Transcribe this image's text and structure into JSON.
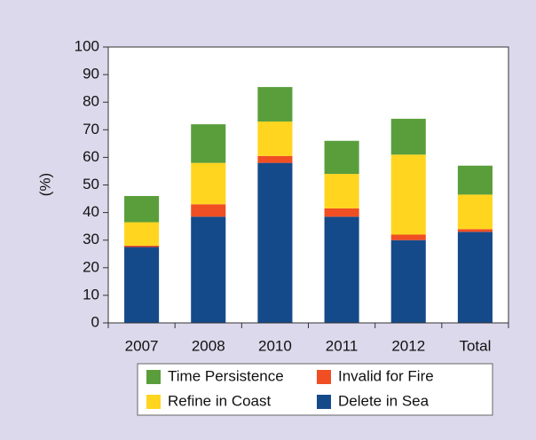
{
  "chart_data": {
    "type": "stacked-bar",
    "categories": [
      "2007",
      "2008",
      "2010",
      "2011",
      "2012",
      "Total"
    ],
    "y_label": "(%)",
    "ylim": [
      0,
      100
    ],
    "yticks": [
      0,
      10,
      20,
      30,
      40,
      50,
      60,
      70,
      80,
      90,
      100
    ],
    "series": [
      {
        "name": "Delete in Sea",
        "color": "#154a8a",
        "values": [
          27.5,
          38.5,
          58,
          38.5,
          30,
          33
        ]
      },
      {
        "name": "Invalid for Fire",
        "color": "#f04e23",
        "values": [
          0.5,
          4.5,
          2.5,
          3,
          2,
          1
        ]
      },
      {
        "name": "Refine in Coast",
        "color": "#ffd520",
        "values": [
          8.5,
          15,
          12.5,
          12.5,
          29,
          12.5
        ]
      },
      {
        "name": "Time Persistence",
        "color": "#5a9e3c",
        "values": [
          9.5,
          14,
          12.5,
          12,
          13,
          10.5
        ]
      }
    ]
  }
}
